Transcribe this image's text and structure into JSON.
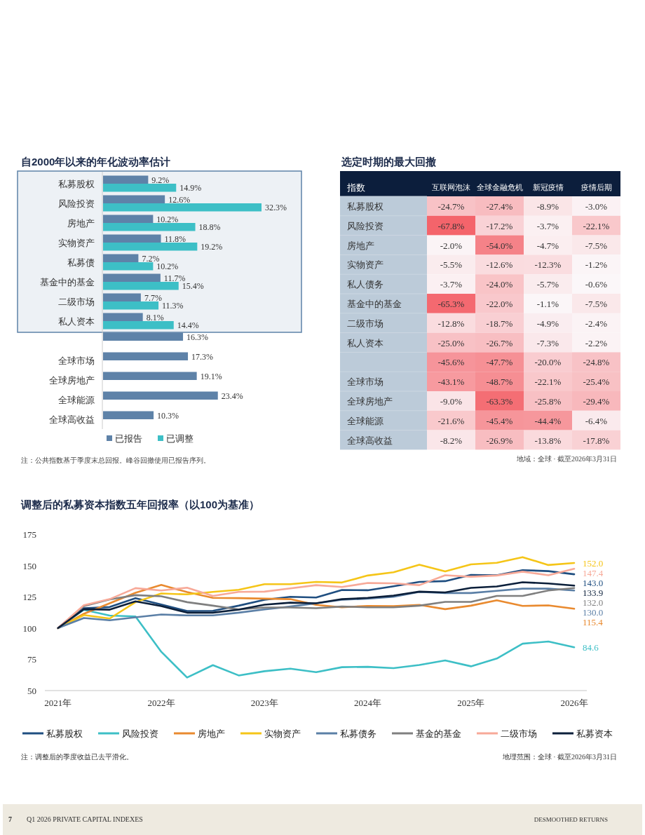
{
  "chart_data": [
    {
      "type": "bar",
      "orientation": "horizontal",
      "title": "自2000年以来的年化波动率估计",
      "legend": "bottom",
      "categories": [
        "私募股权",
        "风险投资",
        "房地产",
        "实物资产",
        "私募债",
        "基金中的基金",
        "二级市场",
        "私人资本",
        null,
        "全球市场",
        "全球房地产",
        "全球能源",
        "全球高收益"
      ],
      "series": [
        {
          "name": "已报告",
          "color": "#5e82a8",
          "values": [
            9.2,
            12.6,
            10.2,
            11.8,
            7.2,
            11.7,
            7.7,
            8.1,
            16.3,
            17.3,
            19.1,
            23.4,
            10.3
          ],
          "value_labels": [
            "9.2%",
            "12.6%",
            "10.2%",
            "11.8%",
            "7.2%",
            "11.7%",
            "7.7%",
            "8.1%",
            "16.3%",
            "17.3%",
            "19.1%",
            "23.4%",
            "10.3%"
          ]
        },
        {
          "name": "已调整",
          "color": "#3dbfc6",
          "values": [
            14.9,
            32.3,
            18.8,
            19.2,
            10.2,
            15.4,
            11.3,
            14.4,
            null,
            null,
            null,
            null,
            null
          ],
          "value_labels": [
            "14.9%",
            "32.3%",
            "18.8%",
            "19.2%",
            "10.2%",
            "15.4%",
            "11.3%",
            "14.4%",
            null,
            null,
            null,
            null,
            null
          ]
        }
      ],
      "bands": [
        {
          "axis": "y",
          "from": "私募股权",
          "to": "私人资本",
          "color": "#edf1f5"
        }
      ],
      "annotations": [
        "注：公共指数基于季度末总回报。峰谷回撤使用已报告序列。"
      ]
    },
    {
      "type": "heatmap",
      "title": "选定时期的最大回撤",
      "ylabel": "指数",
      "categories": [
        "互联网泡沫",
        "全球金融危机",
        "新冠疫情",
        "疫情后期"
      ],
      "y_categories": [
        "私募股权",
        "风险投资",
        "房地产",
        "实物资产",
        "私人债务",
        "基金中的基金",
        "二级市场",
        "私人资本",
        null,
        "全球市场",
        "全球房地产",
        "全球能源",
        "全球高收益"
      ],
      "cells": [
        [
          -24.7,
          -27.4,
          -8.9,
          -3.0
        ],
        [
          -67.8,
          -17.2,
          -3.7,
          -22.1
        ],
        [
          -2.0,
          -54.0,
          -4.7,
          -7.5
        ],
        [
          -5.5,
          -12.6,
          -12.3,
          -1.2
        ],
        [
          -3.7,
          -24.0,
          -5.7,
          -0.6
        ],
        [
          -65.3,
          -22.0,
          -1.1,
          -7.5
        ],
        [
          -12.8,
          -18.7,
          -4.9,
          -2.4
        ],
        [
          -25.0,
          -26.7,
          -7.3,
          -2.2
        ],
        [
          -45.6,
          -47.7,
          -20.0,
          -24.8
        ],
        [
          -43.1,
          -48.7,
          -22.1,
          -25.4
        ],
        [
          -9.0,
          -63.3,
          -25.8,
          -29.4
        ],
        [
          -21.6,
          -45.4,
          -44.4,
          -6.4
        ],
        [
          -8.2,
          -26.9,
          -13.8,
          -17.8
        ]
      ],
      "cell_labels": [
        [
          "-24.7%",
          "-27.4%",
          "-8.9%",
          "-3.0%"
        ],
        [
          "-67.8%",
          "-17.2%",
          "-3.7%",
          "-22.1%"
        ],
        [
          "-2.0%",
          "-54.0%",
          "-4.7%",
          "-7.5%"
        ],
        [
          "-5.5%",
          "-12.6%",
          "-12.3%",
          "-1.2%"
        ],
        [
          "-3.7%",
          "-24.0%",
          "-5.7%",
          "-0.6%"
        ],
        [
          "-65.3%",
          "-22.0%",
          "-1.1%",
          "-7.5%"
        ],
        [
          "-12.8%",
          "-18.7%",
          "-4.9%",
          "-2.4%"
        ],
        [
          "-25.0%",
          "-26.7%",
          "-7.3%",
          "-2.2%"
        ],
        [
          "-45.6%",
          "-47.7%",
          "-20.0%",
          "-24.8%"
        ],
        [
          "-43.1%",
          "-48.7%",
          "-22.1%",
          "-25.4%"
        ],
        [
          "-9.0%",
          "-63.3%",
          "-25.8%",
          "-29.4%"
        ],
        [
          "-21.6%",
          "-45.4%",
          "-44.4%",
          "-6.4%"
        ],
        [
          "-8.2%",
          "-26.9%",
          "-13.8%",
          "-17.8%"
        ]
      ],
      "annotations": [
        "地域：全球 · 截至2026年3月31日"
      ]
    },
    {
      "type": "line",
      "title": "调整后的私募资本指数五年回报率（以100为基准）",
      "legend": "bottom",
      "grid": false,
      "x": [
        "2021-03",
        "2021-06",
        "2021-09",
        "2021-12",
        "2022-03",
        "2022-06",
        "2022-09",
        "2022-12",
        "2023-03",
        "2023-06",
        "2023-09",
        "2023-12",
        "2024-03",
        "2024-06",
        "2024-09",
        "2024-12",
        "2025-03",
        "2025-06",
        "2025-09",
        "2025-12",
        "2026-03"
      ],
      "xlim": [
        "2021-01-15",
        "2026-04-15"
      ],
      "xticks": [
        {
          "value": "2021-03",
          "label": "2021年"
        },
        {
          "value": "2022-03",
          "label": "2022年"
        },
        {
          "value": "2023-03",
          "label": "2023年"
        },
        {
          "value": "2024-03",
          "label": "2024年"
        },
        {
          "value": "2025-03",
          "label": "2025年"
        },
        {
          "value": "2026-03",
          "label": "2026年"
        }
      ],
      "ylim": [
        50,
        175
      ],
      "yticks": [
        50,
        75,
        100,
        125,
        150,
        175
      ],
      "series": [
        {
          "name": "私募股权",
          "color": "#1f4e80",
          "values": [
            100,
            115.9,
            116.8,
            123.9,
            118.8,
            113.6,
            113.8,
            117.9,
            122.6,
            125,
            124.4,
            130.4,
            130.2,
            133.4,
            136.9,
            137.5,
            142.5,
            142.2,
            146.3,
            145.5,
            143.0
          ],
          "value_labels": [
            null,
            null,
            null,
            null,
            null,
            null,
            null,
            null,
            null,
            null,
            null,
            null,
            null,
            null,
            null,
            null,
            null,
            null,
            null,
            null,
            "143.0"
          ]
        },
        {
          "name": "风险投资",
          "color": "#3dbfc6",
          "values": [
            100,
            114.6,
            110,
            109.3,
            81,
            60.4,
            70.3,
            62.1,
            65.5,
            67.5,
            64.7,
            68.7,
            69,
            67.9,
            70.5,
            74.1,
            69.4,
            75.6,
            87.5,
            89.2,
            84.6
          ],
          "value_labels": [
            null,
            null,
            null,
            null,
            null,
            null,
            null,
            null,
            null,
            null,
            null,
            null,
            null,
            null,
            null,
            null,
            null,
            null,
            null,
            null,
            "84.6"
          ]
        },
        {
          "name": "房地产",
          "color": "#e98a2f",
          "values": [
            100,
            111.4,
            119.8,
            128.2,
            134.5,
            128.7,
            124.1,
            123.9,
            123.5,
            123.1,
            118.5,
            116.6,
            117.7,
            117.5,
            118.5,
            115.1,
            117.9,
            122.2,
            117.7,
            118.1,
            115.4
          ],
          "value_labels": [
            null,
            null,
            null,
            null,
            null,
            null,
            null,
            null,
            null,
            null,
            null,
            null,
            null,
            null,
            null,
            null,
            null,
            null,
            null,
            null,
            "115.4"
          ]
        },
        {
          "name": "实物资产",
          "color": "#f5c518",
          "values": [
            100,
            110.4,
            107.6,
            120.7,
            127.6,
            126.9,
            128.9,
            130.6,
            135.1,
            135.1,
            136.9,
            136.4,
            142,
            144.6,
            150.6,
            145.3,
            150.9,
            152.2,
            156.7,
            150.4,
            152.0
          ],
          "value_labels": [
            null,
            null,
            null,
            null,
            null,
            null,
            null,
            null,
            null,
            null,
            null,
            null,
            null,
            null,
            null,
            null,
            null,
            null,
            null,
            null,
            "152.0"
          ]
        },
        {
          "name": "私募债务",
          "color": "#5b7fa6",
          "values": [
            100,
            108,
            106.2,
            108.6,
            110.8,
            110.1,
            110.1,
            112.3,
            114.9,
            117.2,
            119.8,
            122.6,
            123.5,
            125,
            128.9,
            128,
            128,
            129.7,
            131.5,
            131.5,
            130.0
          ],
          "value_labels": [
            null,
            null,
            null,
            null,
            null,
            null,
            null,
            null,
            null,
            null,
            null,
            null,
            null,
            null,
            null,
            null,
            null,
            null,
            null,
            null,
            "130.0"
          ]
        },
        {
          "name": "基金的基金",
          "color": "#7f7f7f",
          "values": [
            100,
            117.5,
            122.9,
            126.3,
            125.4,
            120.7,
            117.9,
            114.9,
            116.4,
            116.4,
            115.9,
            117.2,
            116.6,
            116.6,
            117.9,
            120.9,
            120.9,
            125.7,
            125.7,
            130,
            132.0
          ],
          "value_labels": [
            null,
            null,
            null,
            null,
            null,
            null,
            null,
            null,
            null,
            null,
            null,
            null,
            null,
            null,
            null,
            null,
            null,
            null,
            null,
            null,
            "132.0"
          ]
        },
        {
          "name": "二级市场",
          "color": "#f7a998",
          "values": [
            100,
            118.3,
            123.1,
            131.9,
            130,
            132.3,
            125.7,
            128.9,
            129.1,
            131.7,
            134.3,
            132.8,
            136,
            135.8,
            134.3,
            142.2,
            141,
            142,
            145.1,
            142.2,
            147.4
          ],
          "value_labels": [
            null,
            null,
            null,
            null,
            null,
            null,
            null,
            null,
            null,
            null,
            null,
            null,
            null,
            null,
            null,
            null,
            null,
            null,
            null,
            null,
            "147.4"
          ]
        },
        {
          "name": "私募资本",
          "color": "#0b1f3a",
          "values": [
            100,
            115.1,
            114.7,
            121.3,
            117.5,
            112.3,
            112.3,
            114.7,
            118.7,
            120.3,
            119.8,
            123.1,
            124.1,
            125.9,
            129.1,
            128.5,
            132.1,
            133.2,
            136.6,
            135.6,
            133.9
          ],
          "value_labels": [
            null,
            null,
            null,
            null,
            null,
            null,
            null,
            null,
            null,
            null,
            null,
            null,
            null,
            null,
            null,
            null,
            null,
            null,
            null,
            null,
            "133.9"
          ]
        }
      ],
      "annotations": [
        "注：调整后的季度收益已去平滑化。",
        "地理范围：全球 · 截至2026年3月31日",
        "7",
        "Q1 2026 PRIVATE CAPITAL INDEXES",
        "DESMOOTHED RETURNS"
      ]
    }
  ]
}
